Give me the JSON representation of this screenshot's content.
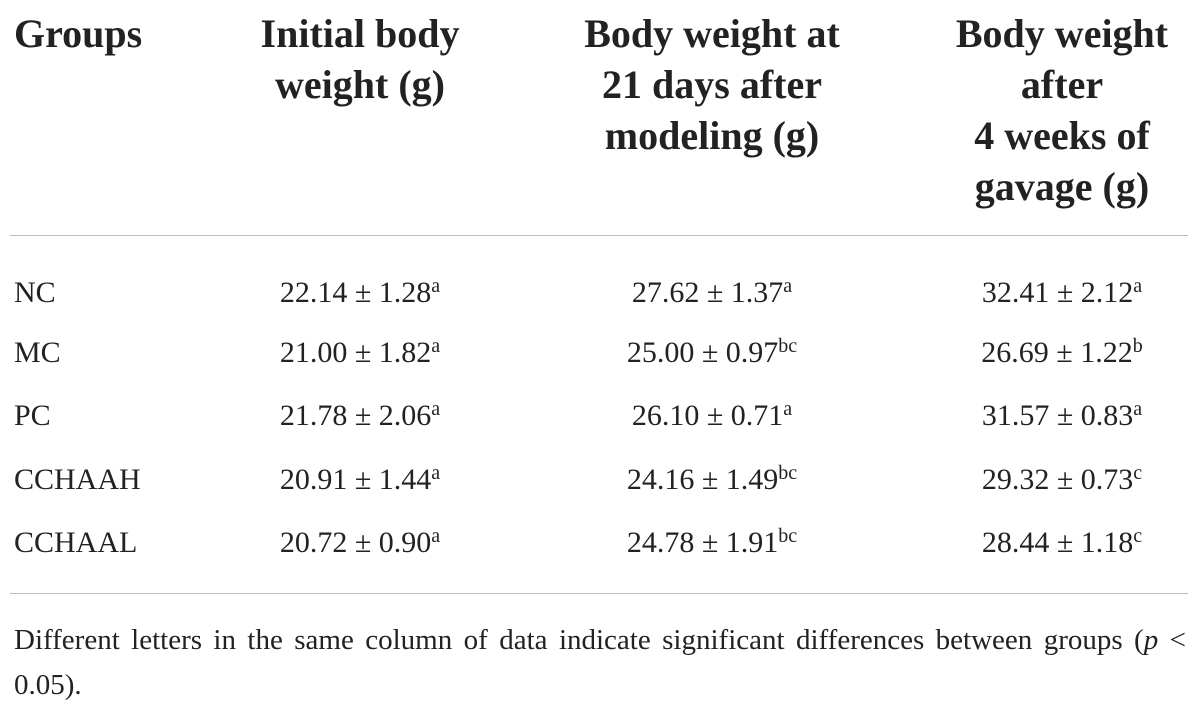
{
  "table": {
    "header": [
      [
        "Groups"
      ],
      [
        "Initial body",
        "weight (g)"
      ],
      [
        "Body weight at",
        "21 days after",
        "modeling (g)"
      ],
      [
        "Body weight",
        "after",
        "4 weeks of",
        "gavage (g)"
      ]
    ],
    "rows": [
      [
        "NC",
        {
          "value": "22.14 ± 1.28",
          "sup": "a"
        },
        {
          "value": "27.62 ± 1.37",
          "sup": "a"
        },
        {
          "value": "32.41 ± 2.12",
          "sup": "a"
        }
      ],
      [
        "MC",
        {
          "value": "21.00 ± 1.82",
          "sup": "a"
        },
        {
          "value": "25.00 ± 0.97",
          "sup": "bc"
        },
        {
          "value": "26.69 ± 1.22",
          "sup": "b"
        }
      ],
      [
        "PC",
        {
          "value": "21.78 ± 2.06",
          "sup": "a"
        },
        {
          "value": "26.10 ± 0.71",
          "sup": "a"
        },
        {
          "value": "31.57 ± 0.83",
          "sup": "a"
        }
      ],
      [
        "CCHAAH",
        {
          "value": "20.91 ± 1.44",
          "sup": "a"
        },
        {
          "value": "24.16 ± 1.49",
          "sup": "bc"
        },
        {
          "value": "29.32 ± 0.73",
          "sup": "c"
        }
      ],
      [
        "CCHAAL",
        {
          "value": "20.72 ± 0.90",
          "sup": "a"
        },
        {
          "value": "24.78 ± 1.91",
          "sup": "bc"
        },
        {
          "value": "28.44 ± 1.18",
          "sup": "c"
        }
      ]
    ],
    "note": {
      "before": "Different letters in the same column of data indicate significant differences between groups (",
      "italic": "p",
      "after": " < 0.05)."
    }
  }
}
